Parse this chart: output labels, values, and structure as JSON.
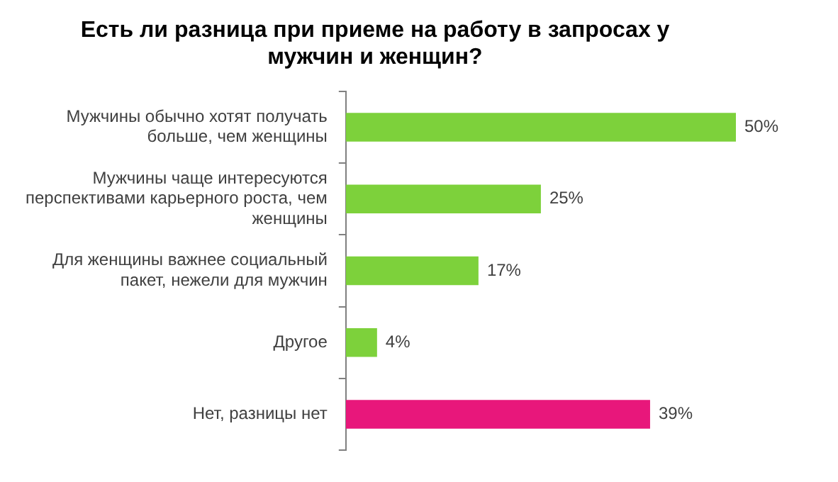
{
  "chart_data": {
    "type": "bar",
    "orientation": "horizontal",
    "title": "Есть ли разница при приеме на работу в запросах у мужчин и женщин?",
    "categories": [
      "Мужчины обычно хотят получать больше, чем женщины",
      "Мужчины чаще интересуются перспективами карьерного роста, чем женщины",
      "Для женщины важнее социальный пакет, нежели для мужчин",
      "Другое",
      "Нет, разницы нет"
    ],
    "values": [
      50,
      25,
      17,
      4,
      39
    ],
    "colors": [
      "#7dd13b",
      "#7dd13b",
      "#7dd13b",
      "#7dd13b",
      "#e8177b"
    ],
    "value_labels": [
      "50%",
      "25%",
      "17%",
      "4%",
      "39%"
    ],
    "grid": false,
    "legend": false
  }
}
